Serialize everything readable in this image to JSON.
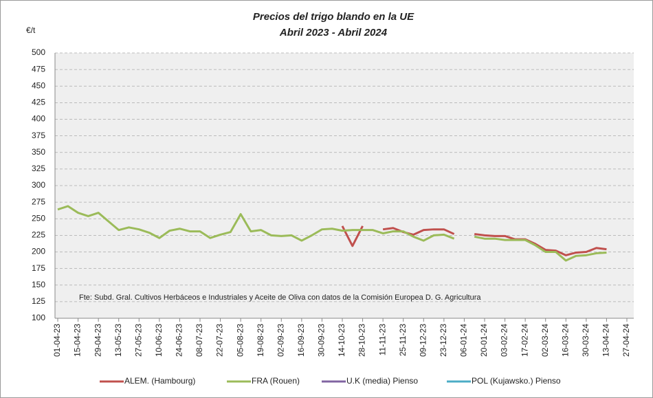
{
  "chart_data": {
    "type": "line",
    "title": "Precios del trigo blando en la UE",
    "subtitle": "Abril 2023 - Abril 2024",
    "y_label": "€/t",
    "annotation": "Fte: Subd. Gral. Cultivos Herbáceos e Industriales y Aceite de Oliva con  datos de la Comisión Europea D. G. Agricultura",
    "categories": [
      "01-04-23",
      null,
      "15-04-23",
      null,
      "29-04-23",
      null,
      "13-05-23",
      null,
      "27-05-23",
      null,
      "10-06-23",
      null,
      "24-06-23",
      null,
      "08-07-23",
      null,
      "22-07-23",
      null,
      "05-08-23",
      null,
      "19-08-23",
      null,
      "02-09-23",
      null,
      "16-09-23",
      null,
      "30-09-23",
      null,
      "14-10-23",
      null,
      "28-10-23",
      null,
      "11-11-23",
      null,
      "25-11-23",
      null,
      "09-12-23",
      null,
      "23-12-23",
      null,
      "06-01-24",
      null,
      "20-01-24",
      null,
      "03-02-24",
      null,
      "17-02-24",
      null,
      "02-03-24",
      null,
      "16-03-24",
      null,
      "30-03-24",
      null,
      "13-04-24",
      null,
      "27-04-24"
    ],
    "series": [
      {
        "name": "ALEM. (Hambourg)",
        "color": "#c0504d",
        "values": [
          null,
          null,
          null,
          null,
          null,
          null,
          null,
          null,
          null,
          null,
          null,
          null,
          null,
          null,
          null,
          null,
          null,
          null,
          null,
          null,
          null,
          null,
          null,
          null,
          null,
          null,
          null,
          null,
          239,
          209,
          239,
          null,
          234,
          236,
          230,
          226,
          233,
          234,
          234,
          227,
          null,
          227,
          225,
          224,
          224,
          219,
          219,
          212,
          203,
          202,
          195,
          199,
          200,
          206,
          204,
          null,
          null
        ]
      },
      {
        "name": "FRA (Rouen)",
        "color": "#9bbb59",
        "values": [
          264,
          269,
          259,
          254,
          259,
          246,
          233,
          237,
          234,
          229,
          221,
          232,
          235,
          231,
          231,
          221,
          226,
          230,
          257,
          231,
          233,
          225,
          224,
          225,
          217,
          225,
          234,
          235,
          232,
          233,
          233,
          233,
          228,
          231,
          231,
          223,
          217,
          225,
          226,
          220,
          null,
          223,
          220,
          220,
          218,
          218,
          218,
          210,
          200,
          200,
          187,
          194,
          195,
          198,
          199,
          null,
          null
        ]
      },
      {
        "name": "U.K (media) Pienso",
        "color": "#8064a2",
        "values": [
          null,
          null,
          null,
          null,
          null,
          null,
          null,
          null,
          null,
          null,
          null,
          null,
          null,
          null,
          null,
          null,
          null,
          null,
          null,
          null,
          null,
          null,
          null,
          null,
          null,
          null,
          null,
          null,
          null,
          null,
          null,
          null,
          null,
          null,
          null,
          null,
          null,
          null,
          null,
          null,
          null,
          null,
          null,
          null,
          null,
          null,
          null,
          null,
          null,
          null,
          null,
          null,
          null,
          null,
          null,
          null,
          null
        ]
      },
      {
        "name": "POL (Kujawsko.) Pienso",
        "color": "#4bacc6",
        "values": [
          null,
          null,
          null,
          null,
          null,
          null,
          null,
          null,
          null,
          null,
          null,
          null,
          null,
          null,
          null,
          null,
          null,
          null,
          null,
          null,
          null,
          null,
          null,
          null,
          null,
          null,
          null,
          null,
          null,
          null,
          null,
          null,
          null,
          null,
          null,
          null,
          null,
          null,
          null,
          null,
          null,
          null,
          null,
          null,
          null,
          null,
          null,
          null,
          null,
          null,
          null,
          null,
          null,
          null,
          null,
          null,
          null
        ]
      }
    ],
    "ylim": [
      100,
      500
    ],
    "yticks": [
      100,
      125,
      150,
      175,
      200,
      225,
      250,
      275,
      300,
      325,
      350,
      375,
      400,
      425,
      450,
      475,
      500
    ],
    "grid": true,
    "legend": "bottom"
  }
}
